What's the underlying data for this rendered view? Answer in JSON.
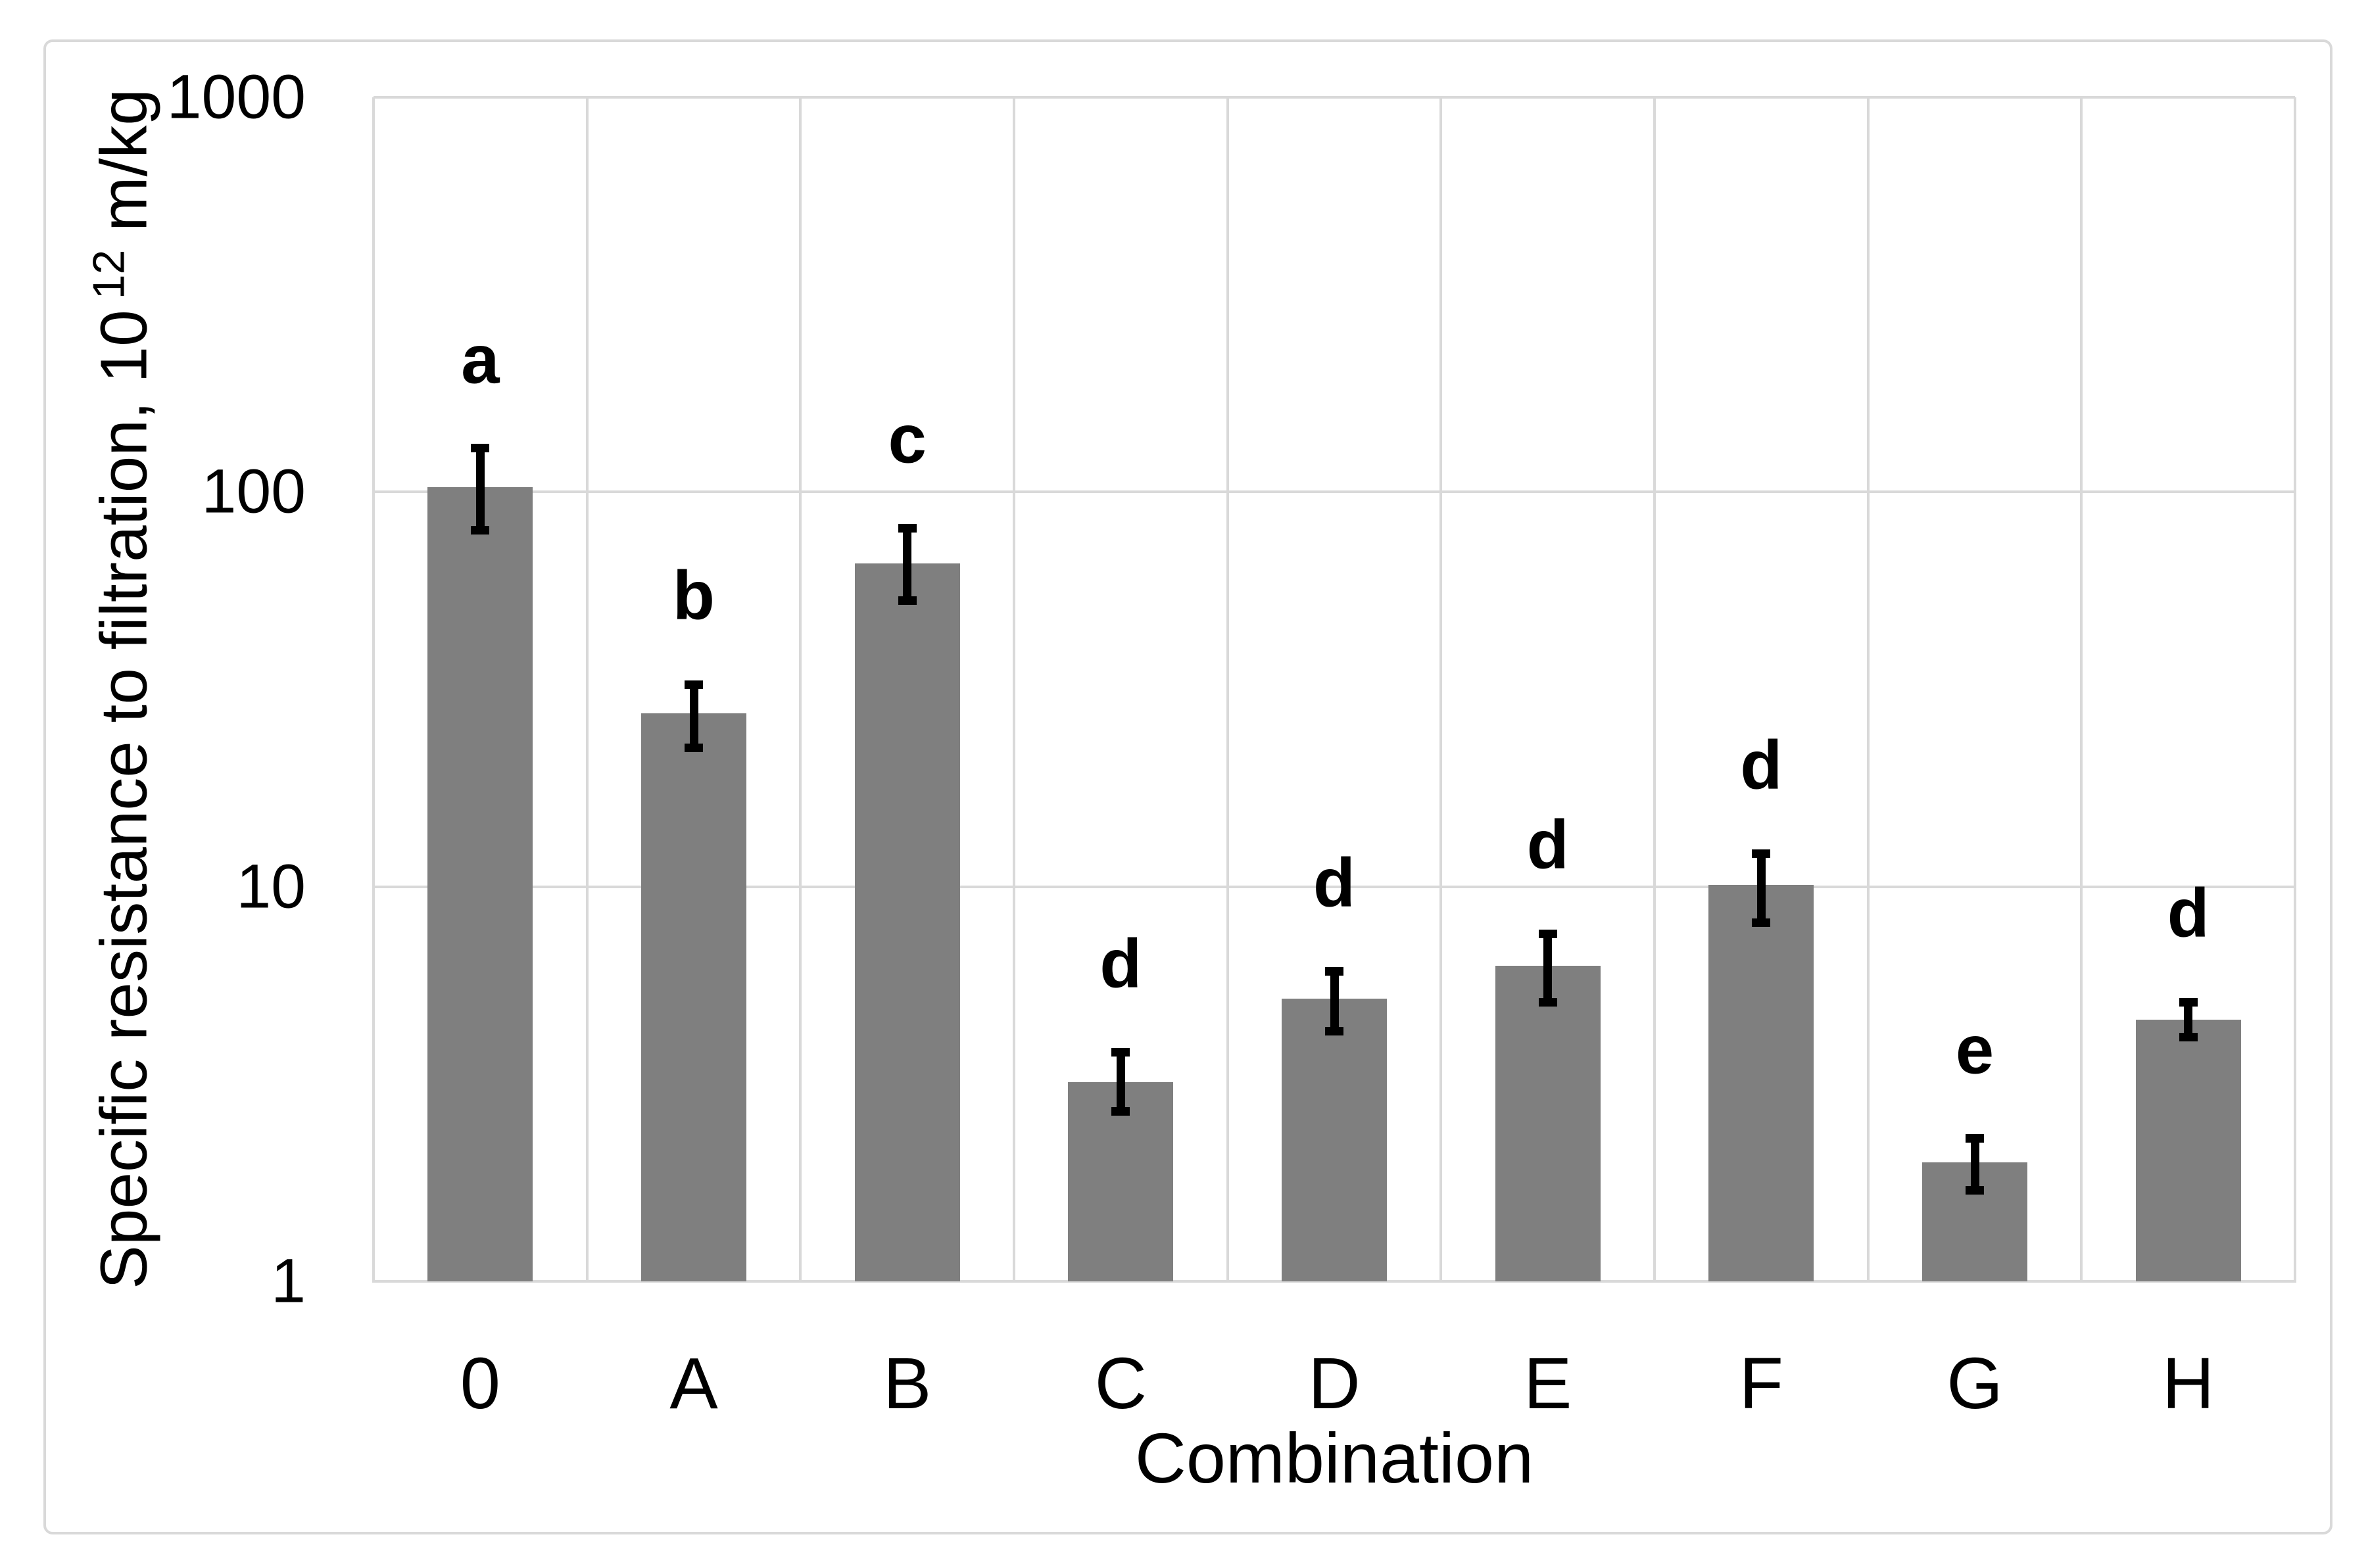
{
  "figure": {
    "background_color": "#ffffff",
    "border_color": "#d9d9d9"
  },
  "chart_data": {
    "type": "bar",
    "title": "",
    "xlabel": "Combination",
    "ylabel_main": "Specific resistance to filtration, 10",
    "ylabel_sup": "12",
    "ylabel_unit": " m/kg",
    "y_scale": "log10",
    "ylim": [
      1,
      1000
    ],
    "y_ticks": [
      "1",
      "10",
      "100",
      "1000"
    ],
    "grid": "horizontal and vertical gridlines",
    "legend_position": "none",
    "bar_color": "#7f7f7f",
    "error_bar_color": "#000000",
    "gridline_color": "#d9d9d9",
    "categories": [
      "0",
      "A",
      "B",
      "C",
      "D",
      "E",
      "F",
      "G",
      "H"
    ],
    "values": [
      103,
      27.5,
      66,
      3.2,
      5.2,
      6.3,
      10.1,
      2.0,
      4.6
    ],
    "error_low": [
      80,
      22.5,
      53,
      2.7,
      4.3,
      5.1,
      8.1,
      1.7,
      4.15
    ],
    "error_high": [
      129,
      32.5,
      81,
      3.8,
      6.1,
      7.6,
      12.1,
      2.3,
      5.1
    ],
    "sig_letters": [
      "a",
      "b",
      "c",
      "d",
      "d",
      "d",
      "d",
      "e",
      "d"
    ]
  }
}
